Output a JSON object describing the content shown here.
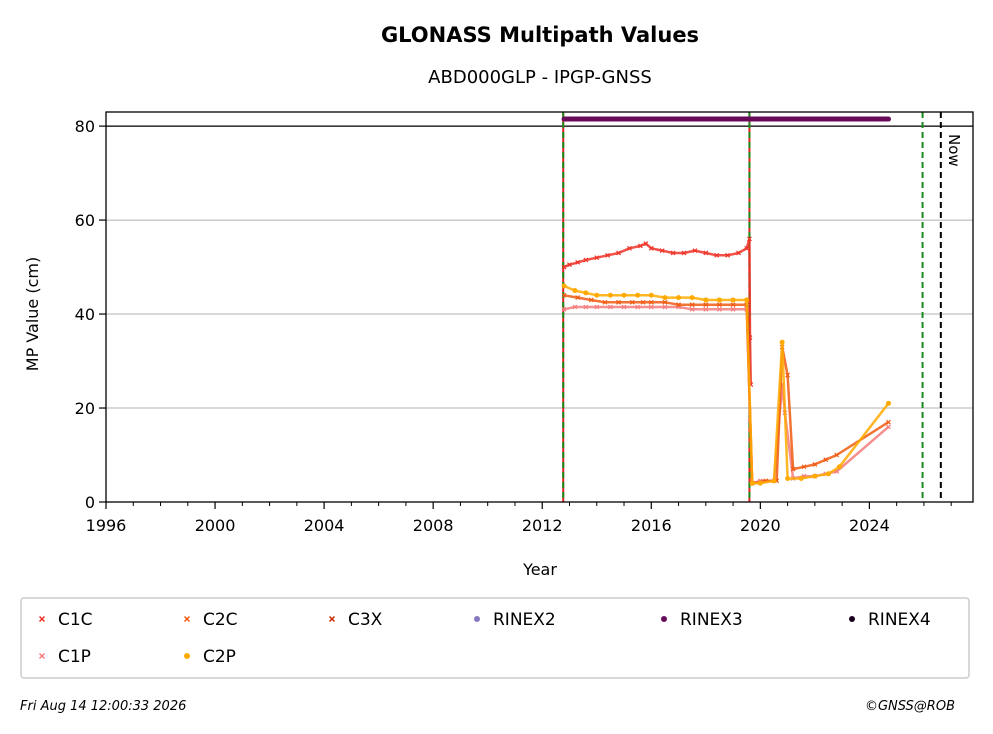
{
  "footer": {
    "timestamp": "Fri Aug 14 12:00:33 2026",
    "copyright": "©GNSS@ROB"
  },
  "chart_data": {
    "type": "scatter",
    "title": "GLONASS Multipath Values",
    "subtitle": "ABD000GLP - IPGP-GNSS",
    "xlabel": "Year",
    "ylabel": "MP Value (cm)",
    "xlim": [
      1996,
      2027.8
    ],
    "ylim": [
      0,
      83
    ],
    "x_ticks": [
      1996,
      2000,
      2004,
      2008,
      2012,
      2016,
      2020,
      2024
    ],
    "y_ticks": [
      0,
      20,
      40,
      60,
      80
    ],
    "grid": "y-major",
    "reference_line_y": 80,
    "now_label": "Now",
    "now_x": 2026.62,
    "vertical_lines": [
      {
        "x": 2012.77,
        "style": "solid-red-green-dashed"
      },
      {
        "x": 2019.6,
        "style": "solid-red-green-dashed"
      },
      {
        "x": 2025.95,
        "style": "green-dashed"
      },
      {
        "x": 2026.62,
        "style": "black-dashed"
      }
    ],
    "colors": {
      "C1C": "#ee3328",
      "C2C": "#f05a10",
      "C3X": "#c82a05",
      "C1P": "#f47c7c",
      "C2P": "#ffaa00",
      "RINEX2": "#8878c0",
      "RINEX3": "#6a0a5a",
      "RINEX4": "#1a0020"
    },
    "legend_position": "below",
    "legend": [
      "C1C",
      "C2C",
      "C3X",
      "RINEX2",
      "RINEX3",
      "RINEX4",
      "C1P",
      "C2P"
    ],
    "series": [
      {
        "name": "C1C",
        "marker": "x",
        "points": [
          [
            2012.8,
            50.0
          ],
          [
            2013.0,
            50.5
          ],
          [
            2013.3,
            51.0
          ],
          [
            2013.6,
            51.5
          ],
          [
            2014.0,
            52.0
          ],
          [
            2014.4,
            52.5
          ],
          [
            2014.8,
            53.0
          ],
          [
            2015.2,
            54.0
          ],
          [
            2015.6,
            54.5
          ],
          [
            2015.8,
            55.0
          ],
          [
            2016.0,
            54.0
          ],
          [
            2016.4,
            53.5
          ],
          [
            2016.8,
            53.0
          ],
          [
            2017.2,
            53.0
          ],
          [
            2017.6,
            53.5
          ],
          [
            2018.0,
            53.0
          ],
          [
            2018.4,
            52.5
          ],
          [
            2018.8,
            52.5
          ],
          [
            2019.2,
            53.0
          ],
          [
            2019.5,
            54.0
          ],
          [
            2019.6,
            56.0
          ],
          [
            2019.62,
            35.0
          ],
          [
            2019.65,
            25.0
          ]
        ]
      },
      {
        "name": "C1P",
        "marker": "x",
        "points": [
          [
            2012.8,
            41.0
          ],
          [
            2013.2,
            41.5
          ],
          [
            2013.6,
            41.5
          ],
          [
            2014.0,
            41.5
          ],
          [
            2014.5,
            41.5
          ],
          [
            2015.0,
            41.5
          ],
          [
            2015.5,
            41.5
          ],
          [
            2016.0,
            41.5
          ],
          [
            2016.5,
            41.5
          ],
          [
            2017.0,
            41.5
          ],
          [
            2017.5,
            41.0
          ],
          [
            2018.0,
            41.0
          ],
          [
            2018.5,
            41.0
          ],
          [
            2019.0,
            41.0
          ],
          [
            2019.5,
            41.0
          ],
          [
            2019.7,
            4.0
          ],
          [
            2020.0,
            4.5
          ],
          [
            2020.5,
            4.5
          ],
          [
            2020.8,
            25.0
          ],
          [
            2020.9,
            19.0
          ],
          [
            2021.2,
            5.0
          ],
          [
            2021.6,
            5.5
          ],
          [
            2022.0,
            5.5
          ],
          [
            2022.4,
            6.0
          ],
          [
            2022.8,
            6.5
          ],
          [
            2024.7,
            16.0
          ]
        ]
      },
      {
        "name": "C2C",
        "marker": "x",
        "points": [
          [
            2012.8,
            44.0
          ],
          [
            2013.3,
            43.5
          ],
          [
            2013.8,
            43.0
          ],
          [
            2014.3,
            42.5
          ],
          [
            2014.8,
            42.5
          ],
          [
            2015.3,
            42.5
          ],
          [
            2015.7,
            42.5
          ],
          [
            2016.0,
            42.5
          ],
          [
            2016.5,
            42.5
          ],
          [
            2017.0,
            42.0
          ],
          [
            2017.5,
            42.0
          ],
          [
            2018.0,
            42.0
          ],
          [
            2018.5,
            42.0
          ],
          [
            2019.0,
            42.0
          ],
          [
            2019.5,
            42.0
          ],
          [
            2019.7,
            4.0
          ],
          [
            2020.2,
            4.5
          ],
          [
            2020.6,
            4.5
          ],
          [
            2020.8,
            33.0
          ],
          [
            2021.0,
            27.0
          ],
          [
            2021.2,
            7.0
          ],
          [
            2021.6,
            7.5
          ],
          [
            2022.0,
            8.0
          ],
          [
            2022.4,
            9.0
          ],
          [
            2022.8,
            10.0
          ],
          [
            2024.7,
            17.0
          ]
        ]
      },
      {
        "name": "C3X",
        "marker": "x",
        "points": []
      },
      {
        "name": "C2P",
        "marker": "dot",
        "points": [
          [
            2012.8,
            46.0
          ],
          [
            2013.2,
            45.0
          ],
          [
            2013.6,
            44.5
          ],
          [
            2014.0,
            44.0
          ],
          [
            2014.5,
            44.0
          ],
          [
            2015.0,
            44.0
          ],
          [
            2015.5,
            44.0
          ],
          [
            2016.0,
            44.0
          ],
          [
            2016.5,
            43.5
          ],
          [
            2017.0,
            43.5
          ],
          [
            2017.5,
            43.5
          ],
          [
            2018.0,
            43.0
          ],
          [
            2018.5,
            43.0
          ],
          [
            2019.0,
            43.0
          ],
          [
            2019.5,
            43.0
          ],
          [
            2019.7,
            4.0
          ],
          [
            2020.0,
            4.0
          ],
          [
            2020.5,
            4.5
          ],
          [
            2020.8,
            34.0
          ],
          [
            2021.0,
            5.0
          ],
          [
            2021.5,
            5.0
          ],
          [
            2022.0,
            5.5
          ],
          [
            2022.5,
            6.0
          ],
          [
            2022.9,
            7.5
          ],
          [
            2024.7,
            21.0
          ]
        ]
      },
      {
        "name": "RINEX2",
        "marker": "dot",
        "points": []
      },
      {
        "name": "RINEX3",
        "marker": "dot",
        "points": [
          [
            2012.8,
            81.5
          ],
          [
            2013.4,
            81.5
          ],
          [
            2014.0,
            81.5
          ],
          [
            2014.6,
            81.5
          ],
          [
            2015.2,
            81.5
          ],
          [
            2015.7,
            81.5
          ],
          [
            2016.0,
            81.5
          ],
          [
            2016.6,
            81.5
          ],
          [
            2017.2,
            81.5
          ],
          [
            2017.8,
            81.5
          ],
          [
            2018.4,
            81.5
          ],
          [
            2019.0,
            81.5
          ],
          [
            2019.6,
            81.5
          ],
          [
            2020.2,
            81.5
          ],
          [
            2020.8,
            81.5
          ],
          [
            2021.4,
            81.5
          ],
          [
            2022.0,
            81.5
          ],
          [
            2022.6,
            81.5
          ],
          [
            2022.9,
            81.5
          ],
          [
            2024.7,
            81.5
          ]
        ]
      },
      {
        "name": "RINEX4",
        "marker": "dot",
        "points": []
      }
    ]
  }
}
